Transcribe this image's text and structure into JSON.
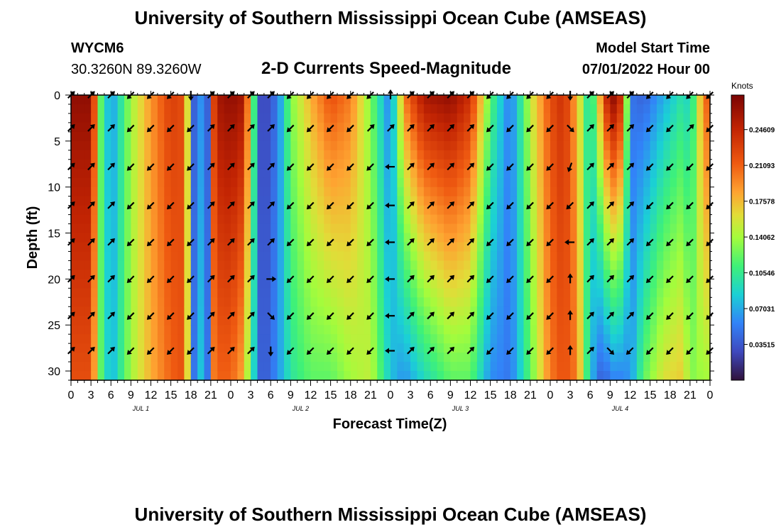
{
  "page": {
    "title": "University of Southern Mississippi Ocean Cube (AMSEAS)",
    "footer_title": "University of Southern Mississippi Ocean Cube (AMSEAS)",
    "station_id": "WYCM6",
    "station_coords": "30.3260N  89.3260W",
    "subtitle": "2-D Currents Speed-Magnitude",
    "model_start_label": "Model Start Time",
    "model_start_value": "07/01/2022 Hour 00"
  },
  "chart_data": {
    "type": "heatmap",
    "title": "2-D Currents Speed-Magnitude",
    "xlabel": "Forecast Time(Z)",
    "ylabel": "Depth (ft)",
    "x_range_hours": [
      0,
      96
    ],
    "ylim": [
      0,
      31
    ],
    "y_ticks": [
      0,
      5,
      10,
      15,
      20,
      25,
      30
    ],
    "x_tick_labels": [
      "0",
      "3",
      "6",
      "9",
      "12",
      "15",
      "18",
      "21",
      "0",
      "3",
      "6",
      "9",
      "12",
      "15",
      "18",
      "21",
      "0",
      "3",
      "6",
      "9",
      "12",
      "15",
      "18",
      "21",
      "0",
      "3",
      "6",
      "9",
      "12",
      "15",
      "18",
      "21",
      "0"
    ],
    "date_labels": [
      {
        "text": "JUL 1",
        "hour": 10.5
      },
      {
        "text": "JUL 2",
        "hour": 34.5
      },
      {
        "text": "JUL 3",
        "hour": 58.5
      },
      {
        "text": "JUL 4",
        "hour": 82.5
      }
    ],
    "colorbar": {
      "unit": "Knots",
      "min": 0.0,
      "max": 0.28,
      "ticks": [
        "0.24609",
        "0.21093",
        "0.17578",
        "0.14062",
        "0.10546",
        "0.07031",
        "0.03515"
      ],
      "tick_values": [
        0.24609,
        0.21093,
        0.17578,
        0.14062,
        0.10546,
        0.07031,
        0.03515
      ]
    },
    "speed_profile_hours": [
      0,
      3,
      4.5,
      6,
      9,
      12,
      15,
      17,
      18.5,
      19.5,
      20.5,
      21,
      22,
      24,
      26,
      27,
      28.5,
      29.5,
      31,
      33,
      36,
      39,
      42,
      45,
      48,
      50,
      53,
      57,
      60,
      63,
      66,
      69,
      72,
      74,
      76,
      78,
      80,
      81,
      82,
      83,
      84,
      86,
      89,
      92,
      93,
      95,
      96
    ],
    "speed_profile_surface": [
      0.27,
      0.27,
      0.12,
      0.06,
      0.14,
      0.19,
      0.23,
      0.22,
      0.04,
      0.06,
      0.04,
      0.2,
      0.26,
      0.27,
      0.26,
      0.15,
      0.03,
      0.03,
      0.05,
      0.13,
      0.18,
      0.22,
      0.2,
      0.13,
      0.05,
      0.2,
      0.26,
      0.27,
      0.24,
      0.12,
      0.05,
      0.15,
      0.22,
      0.24,
      0.18,
      0.08,
      0.22,
      0.27,
      0.27,
      0.22,
      0.05,
      0.04,
      0.07,
      0.1,
      0.08,
      0.2,
      0.22
    ],
    "speed_profile_bottom": [
      0.22,
      0.22,
      0.12,
      0.07,
      0.14,
      0.18,
      0.21,
      0.22,
      0.05,
      0.08,
      0.05,
      0.19,
      0.21,
      0.21,
      0.18,
      0.11,
      0.04,
      0.04,
      0.06,
      0.1,
      0.12,
      0.12,
      0.14,
      0.15,
      0.08,
      0.06,
      0.09,
      0.12,
      0.12,
      0.06,
      0.05,
      0.12,
      0.2,
      0.22,
      0.2,
      0.08,
      0.03,
      0.06,
      0.05,
      0.06,
      0.06,
      0.12,
      0.16,
      0.17,
      0.13,
      0.14,
      0.14
    ],
    "arrow_hours": [
      0,
      3,
      6,
      9,
      12,
      15,
      18,
      21,
      24,
      27,
      30,
      33,
      36,
      39,
      42,
      45,
      48,
      51,
      54,
      57,
      60,
      63,
      66,
      69,
      72,
      75,
      78,
      81,
      84,
      87,
      90,
      93,
      96
    ],
    "arrow_depths_ft": [
      0,
      3.6,
      7.8,
      12,
      16,
      20,
      24,
      27.8
    ],
    "arrow_directions_deg": [
      [
        45,
        45,
        45,
        225,
        225,
        225,
        270,
        45,
        45,
        45,
        45,
        225,
        225,
        225,
        225,
        225,
        90,
        45,
        45,
        45,
        45,
        225,
        225,
        225,
        225,
        270,
        45,
        45,
        45,
        225,
        225,
        225,
        225
      ],
      [
        45,
        45,
        45,
        225,
        225,
        225,
        225,
        45,
        45,
        45,
        45,
        225,
        225,
        225,
        225,
        45,
        45,
        45,
        45,
        45,
        45,
        225,
        225,
        225,
        225,
        315,
        45,
        45,
        45,
        225,
        225,
        45,
        225
      ],
      [
        45,
        45,
        45,
        225,
        225,
        225,
        225,
        45,
        45,
        45,
        45,
        225,
        225,
        225,
        225,
        225,
        180,
        45,
        45,
        45,
        45,
        225,
        225,
        225,
        225,
        250,
        45,
        45,
        45,
        225,
        225,
        225,
        225
      ],
      [
        45,
        45,
        45,
        225,
        225,
        225,
        225,
        45,
        45,
        45,
        45,
        225,
        225,
        225,
        225,
        225,
        180,
        45,
        45,
        45,
        45,
        225,
        225,
        225,
        225,
        225,
        45,
        45,
        45,
        225,
        225,
        225,
        225
      ],
      [
        45,
        45,
        45,
        225,
        225,
        225,
        225,
        45,
        45,
        45,
        45,
        225,
        225,
        225,
        225,
        225,
        180,
        45,
        45,
        45,
        45,
        225,
        225,
        225,
        225,
        180,
        45,
        45,
        45,
        225,
        225,
        225,
        225
      ],
      [
        45,
        45,
        45,
        225,
        225,
        225,
        225,
        45,
        45,
        45,
        0,
        225,
        225,
        225,
        225,
        225,
        180,
        45,
        45,
        45,
        45,
        225,
        225,
        225,
        225,
        90,
        45,
        45,
        45,
        225,
        225,
        225,
        225
      ],
      [
        45,
        45,
        45,
        225,
        225,
        225,
        225,
        45,
        45,
        45,
        315,
        225,
        225,
        225,
        225,
        225,
        180,
        45,
        45,
        45,
        45,
        225,
        225,
        225,
        225,
        90,
        45,
        45,
        45,
        225,
        225,
        225,
        225
      ],
      [
        45,
        45,
        45,
        225,
        225,
        225,
        225,
        45,
        45,
        45,
        270,
        225,
        225,
        225,
        225,
        225,
        180,
        45,
        45,
        45,
        45,
        225,
        225,
        225,
        225,
        90,
        45,
        315,
        225,
        225,
        225,
        225,
        225
      ]
    ]
  }
}
